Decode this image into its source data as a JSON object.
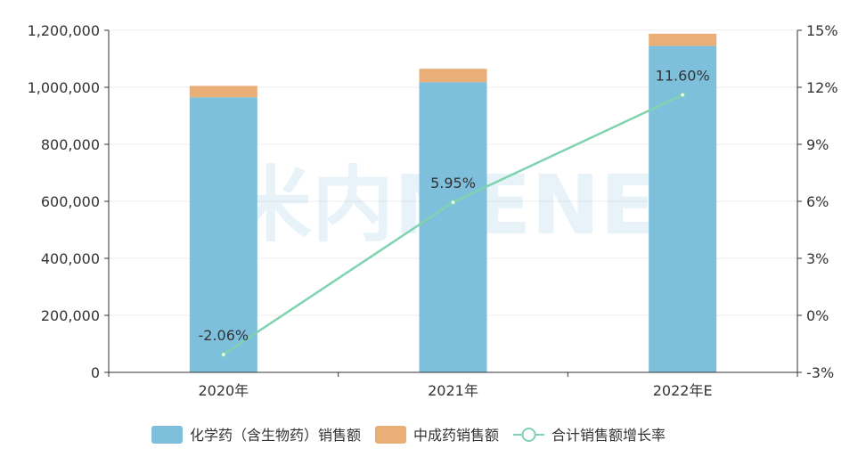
{
  "chart_data": {
    "type": "bar",
    "stacked": true,
    "categories": [
      "2020年",
      "2021年",
      "2022年E"
    ],
    "series": [
      {
        "name": "化学药（含生物药）销售额",
        "type": "bar",
        "axis": "left",
        "color": "#7ebfdb",
        "values": [
          965000,
          1018000,
          1145000
        ]
      },
      {
        "name": "中成药销售额",
        "type": "bar",
        "axis": "left",
        "color": "#eaae77",
        "values": [
          40000,
          47000,
          43000
        ]
      },
      {
        "name": "合计销售额增长率",
        "type": "line",
        "axis": "right",
        "color": "#7fd3b0",
        "values": [
          -2.06,
          5.95,
          11.6
        ],
        "labels": [
          "-2.06%",
          "5.95%",
          "11.60%"
        ]
      }
    ],
    "y_left": {
      "min": 0,
      "max": 1200000,
      "ticks": [
        "0",
        "200,000",
        "400,000",
        "600,000",
        "800,000",
        "1,000,000",
        "1,200,000"
      ]
    },
    "y_right": {
      "min": -3,
      "max": 15,
      "ticks": [
        "-3%",
        "0%",
        "3%",
        "6%",
        "9%",
        "12%",
        "15%"
      ]
    },
    "grid": true,
    "legend_position": "bottom",
    "watermark": "米内MENET"
  }
}
